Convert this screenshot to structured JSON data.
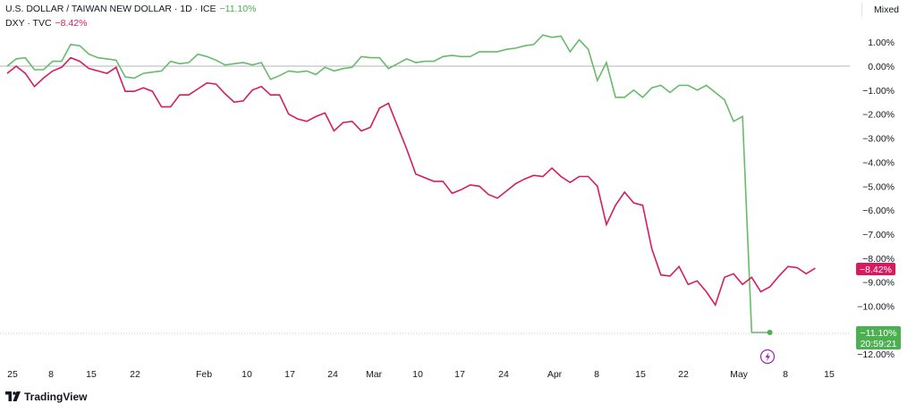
{
  "legend": {
    "series1_symbol": "U.S. DOLLAR / TAIWAN NEW DOLLAR · 1D · ICE",
    "series1_change": "−11.10%",
    "series2_symbol": "DXY · TVC",
    "series2_change": "−8.42%"
  },
  "toolbar": {
    "scale_mode": "Mixed"
  },
  "branding": {
    "logo_text": "TradingView"
  },
  "colors": {
    "usdtwd": "#4caf50",
    "dxy": "#d81b60",
    "axis_text": "#131722",
    "zero_line": "#b2b5be"
  },
  "chart_data": {
    "type": "line",
    "x_labels": [
      "25",
      "8",
      "15",
      "22",
      "Feb",
      "10",
      "17",
      "24",
      "Mar",
      "10",
      "17",
      "24",
      "Apr",
      "8",
      "15",
      "22",
      "May",
      "8",
      "15"
    ],
    "ylim": [
      -12,
      1.5
    ],
    "yticks": [
      "1.00%",
      "0.00%",
      "−1.00%",
      "−2.00%",
      "−3.00%",
      "−4.00%",
      "−5.00%",
      "−6.00%",
      "−7.00%",
      "−8.00%",
      "−9.00%",
      "−10.00%",
      "−11.00%",
      "−12.00%"
    ],
    "series": [
      {
        "name": "U.S. DOLLAR / TAIWAN NEW DOLLAR",
        "values": [
          0.0,
          0.3,
          0.35,
          -0.15,
          -0.15,
          0.2,
          0.2,
          0.9,
          0.85,
          0.5,
          0.35,
          0.3,
          0.25,
          -0.45,
          -0.5,
          -0.3,
          -0.25,
          -0.2,
          0.2,
          0.1,
          0.15,
          0.5,
          0.4,
          0.25,
          0.05,
          0.1,
          0.15,
          0.05,
          0.15,
          -0.55,
          -0.4,
          -0.2,
          -0.25,
          -0.2,
          -0.35,
          -0.05,
          -0.2,
          -0.1,
          -0.05,
          0.4,
          0.35,
          0.35,
          -0.1,
          0.1,
          0.3,
          0.15,
          0.2,
          0.2,
          0.4,
          0.45,
          0.4,
          0.4,
          0.6,
          0.6,
          0.6,
          0.7,
          0.75,
          0.85,
          0.9,
          1.3,
          1.2,
          1.25,
          0.6,
          1.1,
          0.7,
          -0.6,
          0.15,
          -1.3,
          -1.3,
          -1.0,
          -1.3,
          -0.9,
          -0.8,
          -1.1,
          -0.8,
          -0.8,
          -1.0,
          -0.8,
          -1.1,
          -1.4,
          -2.3,
          -2.1,
          -11.1,
          -11.1,
          -11.1
        ],
        "last_value_label": "−11.10%",
        "countdown": "20:59:21"
      },
      {
        "name": "DXY",
        "values": [
          -0.3,
          0.0,
          -0.3,
          -0.85,
          -0.5,
          -0.2,
          -0.05,
          0.35,
          0.2,
          -0.1,
          -0.2,
          -0.3,
          -0.05,
          -1.05,
          -1.05,
          -0.9,
          -1.05,
          -1.7,
          -1.7,
          -1.2,
          -1.2,
          -0.95,
          -0.7,
          -0.75,
          -1.15,
          -1.5,
          -1.45,
          -1.0,
          -0.85,
          -1.2,
          -1.2,
          -2.0,
          -2.2,
          -2.3,
          -2.1,
          -1.95,
          -2.7,
          -2.35,
          -2.3,
          -2.7,
          -2.55,
          -1.75,
          -1.55,
          -2.5,
          -3.45,
          -4.5,
          -4.65,
          -4.8,
          -4.8,
          -5.3,
          -5.15,
          -4.95,
          -5.0,
          -5.35,
          -5.5,
          -5.2,
          -4.9,
          -4.7,
          -4.55,
          -4.6,
          -4.25,
          -4.6,
          -4.85,
          -4.6,
          -4.6,
          -5.0,
          -6.6,
          -5.8,
          -5.25,
          -5.7,
          -5.8,
          -7.6,
          -8.7,
          -8.75,
          -8.35,
          -9.1,
          -8.95,
          -9.4,
          -9.95,
          -8.8,
          -8.65,
          -9.1,
          -8.8,
          -9.4,
          -9.2,
          -8.75,
          -8.35,
          -8.4,
          -8.65,
          -8.42
        ],
        "last_value_label": "−8.42%"
      }
    ]
  }
}
